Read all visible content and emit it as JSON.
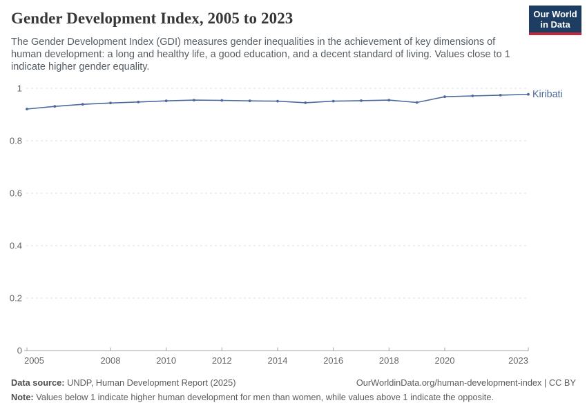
{
  "header": {
    "title": "Gender Development Index, 2005 to 2023",
    "subtitle": "The Gender Development Index (GDI) measures gender inequalities in the achievement of key dimensions of human development: a long and healthy life, a good education, and a decent standard of living. Values close to 1 indicate higher gender equality.",
    "logo": {
      "line1": "Our World",
      "line2": "in Data",
      "bg_color": "#1d3d63",
      "bar_color": "#c0293c"
    }
  },
  "chart_data": {
    "type": "line",
    "title": "Gender Development Index, 2005 to 2023",
    "x": [
      2005,
      2006,
      2007,
      2008,
      2009,
      2010,
      2011,
      2012,
      2013,
      2014,
      2015,
      2016,
      2017,
      2018,
      2019,
      2020,
      2021,
      2022,
      2023
    ],
    "series": [
      {
        "name": "Kiribati",
        "color": "#4c6a9c",
        "values": [
          0.921,
          0.931,
          0.939,
          0.944,
          0.948,
          0.952,
          0.955,
          0.954,
          0.952,
          0.951,
          0.945,
          0.951,
          0.953,
          0.955,
          0.946,
          0.968,
          0.971,
          0.974,
          0.977
        ]
      }
    ],
    "xlabel": "",
    "ylabel": "",
    "ylim": [
      0,
      1
    ],
    "yticks": [
      0,
      0.2,
      0.4,
      0.6,
      0.8,
      1
    ],
    "ytick_labels": [
      "0",
      "0.2",
      "0.4",
      "0.6",
      "0.8",
      "1"
    ],
    "xticks": [
      2005,
      2008,
      2010,
      2012,
      2014,
      2016,
      2018,
      2020,
      2023
    ],
    "xtick_labels": [
      "2005",
      "2008",
      "2010",
      "2012",
      "2014",
      "2016",
      "2018",
      "2020",
      "2023"
    ],
    "grid": "horizontal-dashed",
    "legend_position": "end-of-line-label",
    "end_label": "Kiribati"
  },
  "footer": {
    "source_label": "Data source:",
    "source_text": " UNDP, Human Development Report (2025)",
    "link_text": "OurWorldinData.org/human-development-index | CC BY",
    "note_label": "Note:",
    "note_text": " Values below 1 indicate higher human development for men than women, while values above 1 indicate the opposite."
  },
  "colors": {
    "line": "#4c6a9c",
    "grid": "#dcdcdc",
    "axis": "#a5a5a5",
    "tick_label": "#666666",
    "title": "#383636",
    "subtitle": "#555d63",
    "footer": "#5b5b5b"
  }
}
